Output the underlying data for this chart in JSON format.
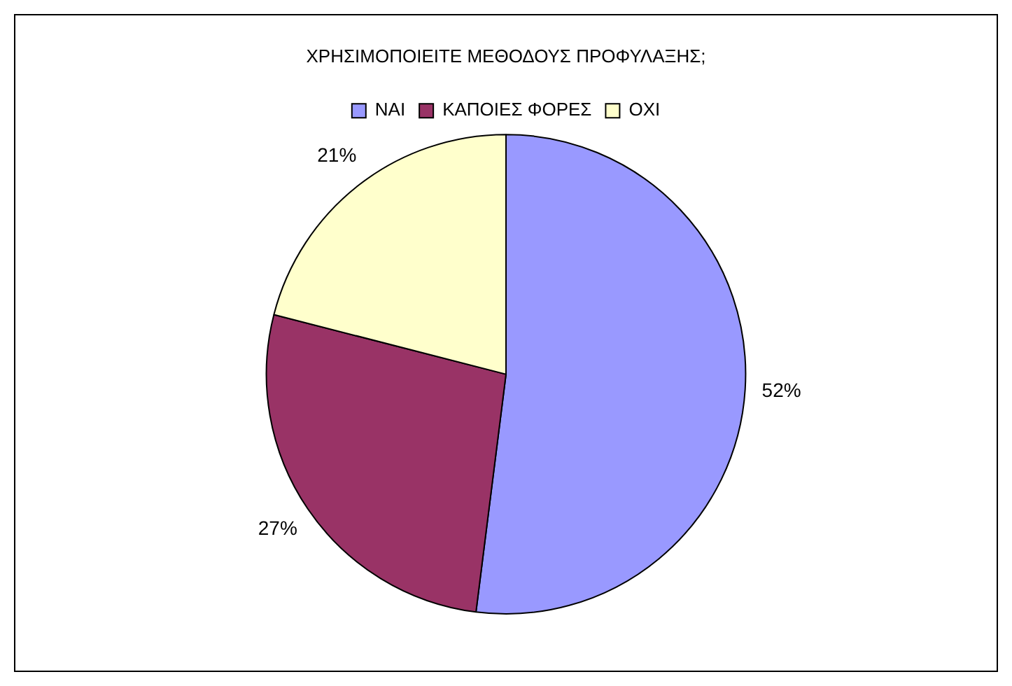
{
  "chart_data": {
    "type": "pie",
    "title": "ΧΡΗΣΙΜΟΠΟΙΕΙΤΕ ΜΕΘΟΔΟΥΣ ΠΡΟΦΥΛΑΞΗΣ;",
    "categories": [
      "ΝΑΙ",
      "ΚΑΠΟΙΕΣ ΦΟΡΕΣ",
      "ΟΧΙ"
    ],
    "values": [
      52,
      27,
      21
    ],
    "colors": [
      "#9999ff",
      "#993366",
      "#ffffcc"
    ],
    "value_labels": [
      "52%",
      "27%",
      "21%"
    ],
    "legend": "top"
  }
}
